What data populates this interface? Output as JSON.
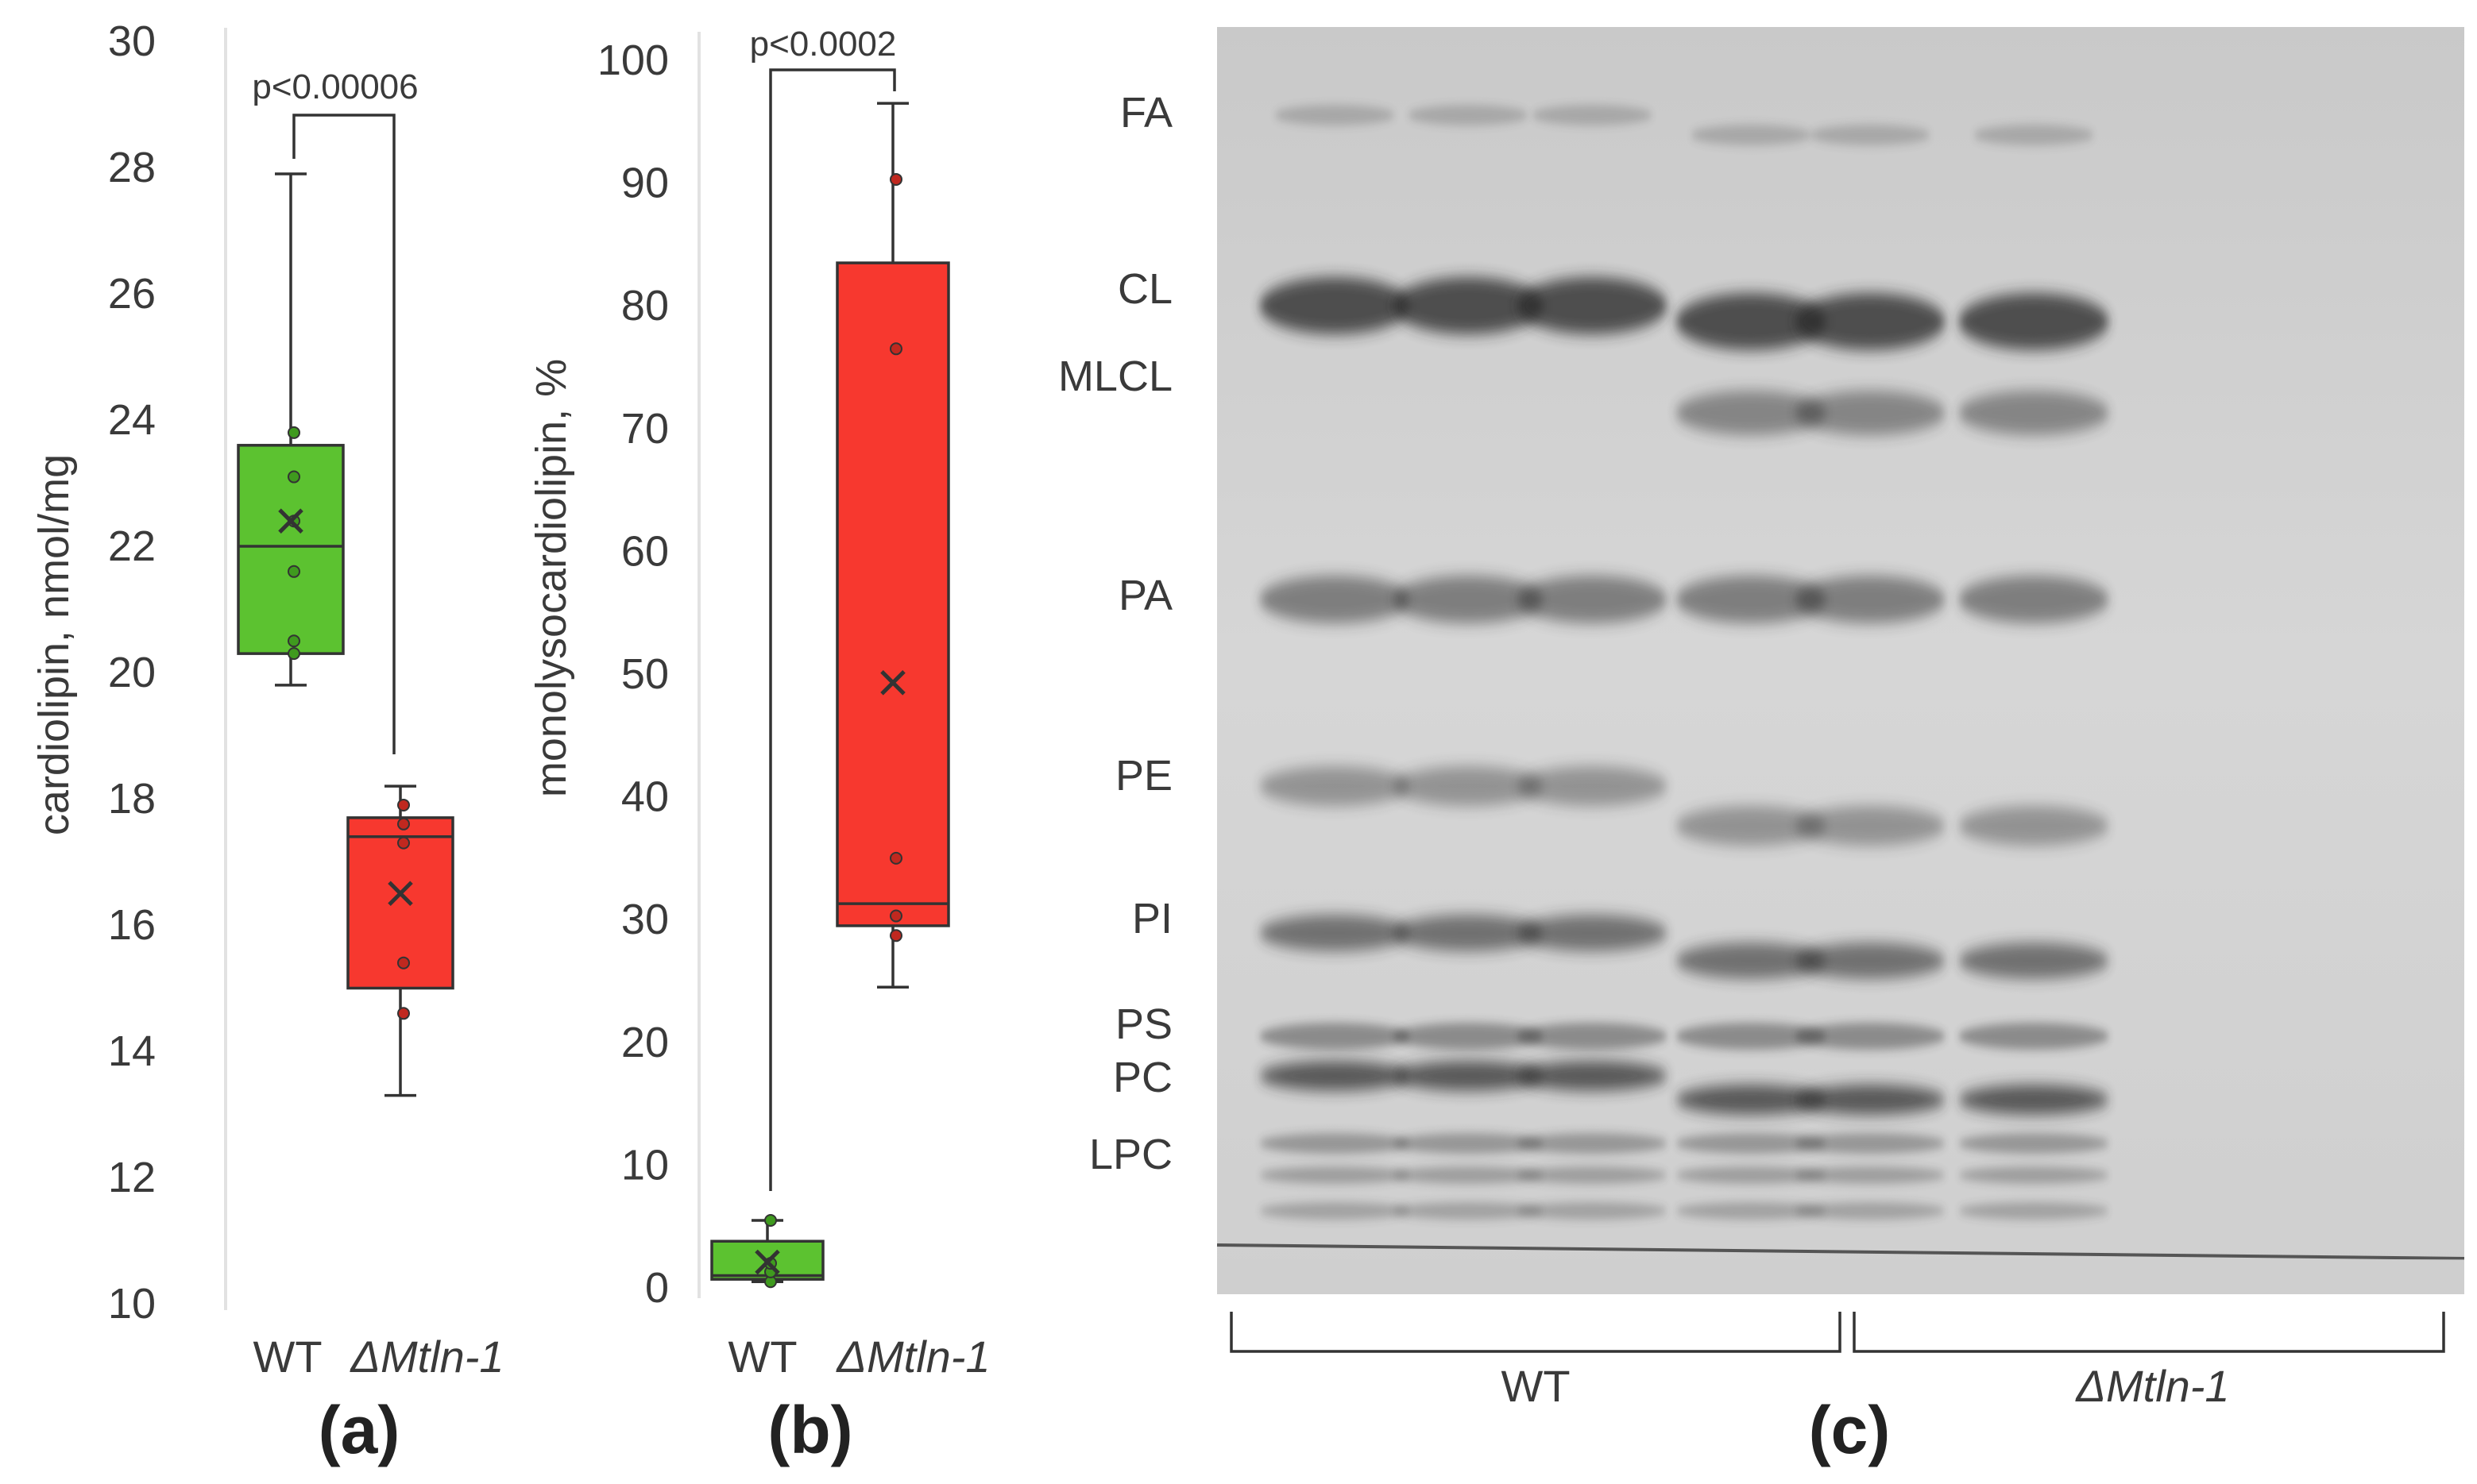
{
  "panel_a": {
    "panel_label": "(a)",
    "ylabel": "cardiolipin, nmol/mg",
    "ylim": [
      10,
      30
    ],
    "yticks": [
      "10",
      "12",
      "14",
      "16",
      "18",
      "20",
      "22",
      "24",
      "26",
      "28",
      "30"
    ],
    "group_labels": [
      "WT",
      "ΔMtln-1"
    ],
    "pvalue": "p<0.00006"
  },
  "panel_b": {
    "panel_label": "(b)",
    "ylabel": "monolysocardiolipin, %",
    "ylim": [
      0,
      100
    ],
    "yticks": [
      "0",
      "10",
      "20",
      "30",
      "40",
      "50",
      "60",
      "70",
      "80",
      "90",
      "100"
    ],
    "group_labels": [
      "WT",
      "ΔMtln-1"
    ],
    "pvalue": "p<0.0002"
  },
  "panel_c": {
    "panel_label": "(c)",
    "band_labels": [
      "FA",
      "CL",
      "MLCL",
      "PA",
      "PE",
      "PI",
      "PS",
      "PC",
      "LPC"
    ],
    "group_labels": [
      "WT",
      "ΔMtln-1"
    ],
    "lane_count": 6
  },
  "colors": {
    "wt": "#5cc230",
    "mutant": "#f7382f",
    "wt_point": "#3f9a1e",
    "mutant_point": "#c0281f"
  },
  "chart_data": [
    {
      "type": "box",
      "ylim": [
        10,
        30
      ],
      "series": [
        {
          "category": "WT",
          "min": 19.8,
          "q1": 20.3,
          "median": 22.0,
          "q3": 23.6,
          "max": 27.9,
          "mean": 22.4,
          "points": [
            20.3,
            20.5,
            21.6,
            22.4,
            23.1,
            23.8
          ]
        },
        {
          "category": "ΔMtln-1",
          "min": 13.3,
          "q1": 15.0,
          "median": 17.4,
          "q3": 17.7,
          "max": 18.2,
          "mean": 16.5,
          "points": [
            14.6,
            15.4,
            17.3,
            17.6,
            17.9
          ]
        }
      ]
    },
    {
      "type": "box",
      "ylim": [
        0,
        100
      ],
      "series": [
        {
          "category": "WT",
          "min": 0.5,
          "q1": 0.7,
          "median": 1.0,
          "q3": 3.8,
          "max": 5.5,
          "mean": 2.1,
          "points": [
            0.5,
            1.3,
            2.0,
            5.5
          ]
        },
        {
          "category": "ΔMtln-1",
          "min": 24.5,
          "q1": 29.5,
          "median": 31.3,
          "q3": 83.5,
          "max": 96.5,
          "mean": 49.3,
          "points": [
            28.7,
            30.3,
            35.0,
            76.5,
            90.3
          ]
        }
      ]
    }
  ]
}
